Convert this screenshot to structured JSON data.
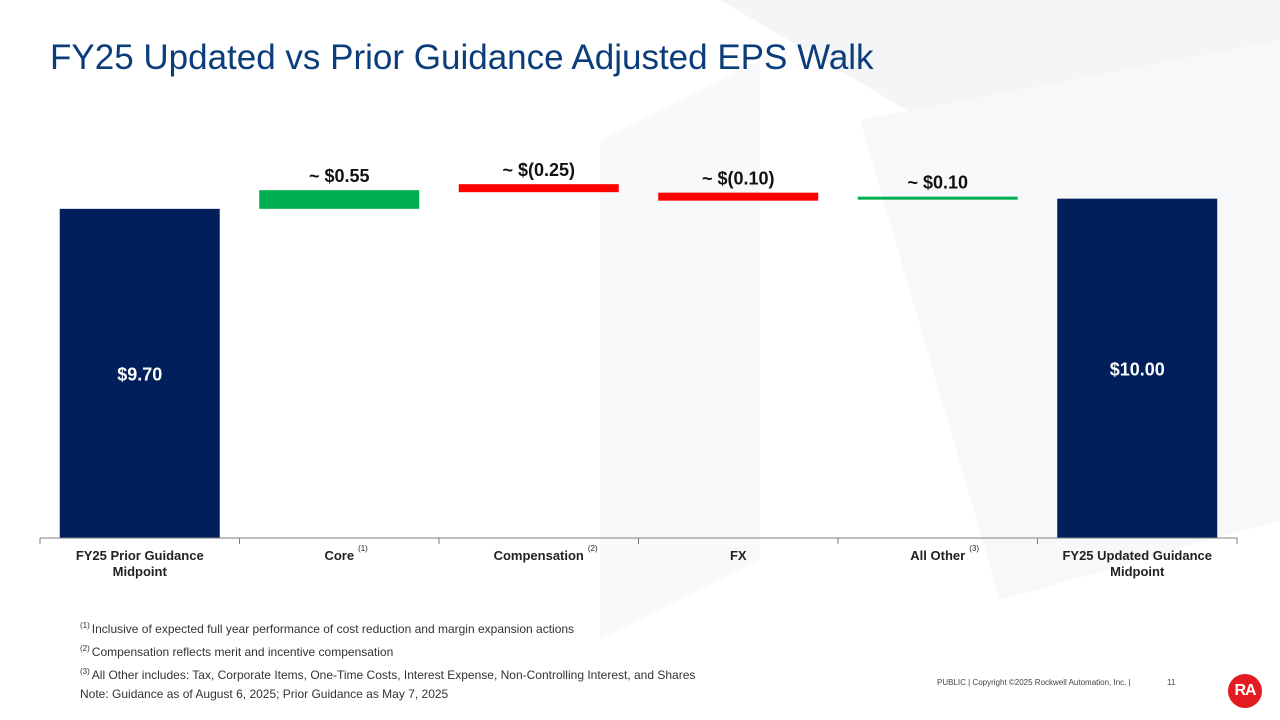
{
  "page": {
    "title": "FY25 Updated vs Prior Guidance Adjusted EPS Walk",
    "footer": "PUBLIC | Copyright ©2025 Rockwell Automation, Inc. |",
    "page_number": "11",
    "logo_text": "RA"
  },
  "colors": {
    "title": "#0b3d7a",
    "total_bar": "#001f5b",
    "increase": "#00b050",
    "decrease": "#ff0000",
    "logo": "#e31b23"
  },
  "chart_data": {
    "type": "bar",
    "subtype": "waterfall",
    "title": "",
    "xlabel": "",
    "ylabel": "",
    "ylim": [
      0,
      10.55
    ],
    "categories": [
      {
        "label": "FY25 Prior Guidance Midpoint",
        "lines": [
          "FY25 Prior Guidance",
          "Midpoint"
        ],
        "footnote": ""
      },
      {
        "label": "Core",
        "lines": [
          "Core"
        ],
        "footnote": "(1)"
      },
      {
        "label": "Compensation",
        "lines": [
          "Compensation"
        ],
        "footnote": "(2)"
      },
      {
        "label": "FX",
        "lines": [
          "FX"
        ],
        "footnote": ""
      },
      {
        "label": "All Other",
        "lines": [
          "All Other"
        ],
        "footnote": "(3)"
      },
      {
        "label": "FY25 Updated Guidance Midpoint",
        "lines": [
          "FY25 Updated Guidance",
          "Midpoint"
        ],
        "footnote": ""
      }
    ],
    "steps": [
      {
        "kind": "total",
        "value": 9.7,
        "label": "$9.70"
      },
      {
        "kind": "delta",
        "value": 0.55,
        "label": "~ $0.55"
      },
      {
        "kind": "delta",
        "value": -0.25,
        "label": "~ $(0.25)"
      },
      {
        "kind": "delta",
        "value": -0.1,
        "label": "~ $(0.10)"
      },
      {
        "kind": "delta",
        "value": 0.1,
        "label": "~ $0.10"
      },
      {
        "kind": "total",
        "value": 10.0,
        "label": "$10.00"
      }
    ],
    "grid": false,
    "legend": "none"
  },
  "notes": [
    {
      "sup": "(1)",
      "text": "Inclusive of expected full year performance of cost reduction and margin expansion actions"
    },
    {
      "sup": "(2)",
      "text": "Compensation reflects merit and incentive compensation"
    },
    {
      "sup": "(3)",
      "text": "All Other includes: Tax, Corporate Items, One-Time Costs, Interest Expense, Non-Controlling Interest, and Shares"
    },
    {
      "sup": "",
      "text": "Note: Guidance as of August 6, 2025; Prior Guidance as May 7, 2025"
    }
  ]
}
